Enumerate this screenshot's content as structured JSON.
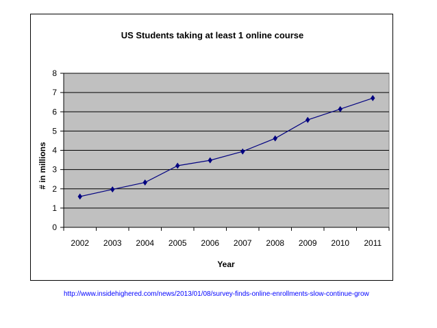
{
  "chart_data": {
    "type": "line",
    "title": "US Students taking at least 1 online course",
    "xlabel": "Year",
    "ylabel": "# in millions",
    "categories": [
      "2002",
      "2003",
      "2004",
      "2005",
      "2006",
      "2007",
      "2008",
      "2009",
      "2010",
      "2011"
    ],
    "series": [
      {
        "values": [
          1.6,
          1.97,
          2.33,
          3.2,
          3.48,
          3.94,
          4.62,
          5.58,
          6.14,
          6.71
        ]
      }
    ],
    "ylim": [
      0,
      8
    ],
    "yticks": [
      "0",
      "1",
      "2",
      "3",
      "4",
      "5",
      "6",
      "7",
      "8"
    ],
    "grid": true,
    "legend": "none",
    "colors": {
      "plot_background": "#c0c0c0",
      "line": "#000080",
      "marker": "#000080",
      "gridline": "#000000"
    }
  },
  "source_url": "http://www.insidehighered.com/news/2013/01/08/survey-finds-online-enrollments-slow-continue-grow"
}
